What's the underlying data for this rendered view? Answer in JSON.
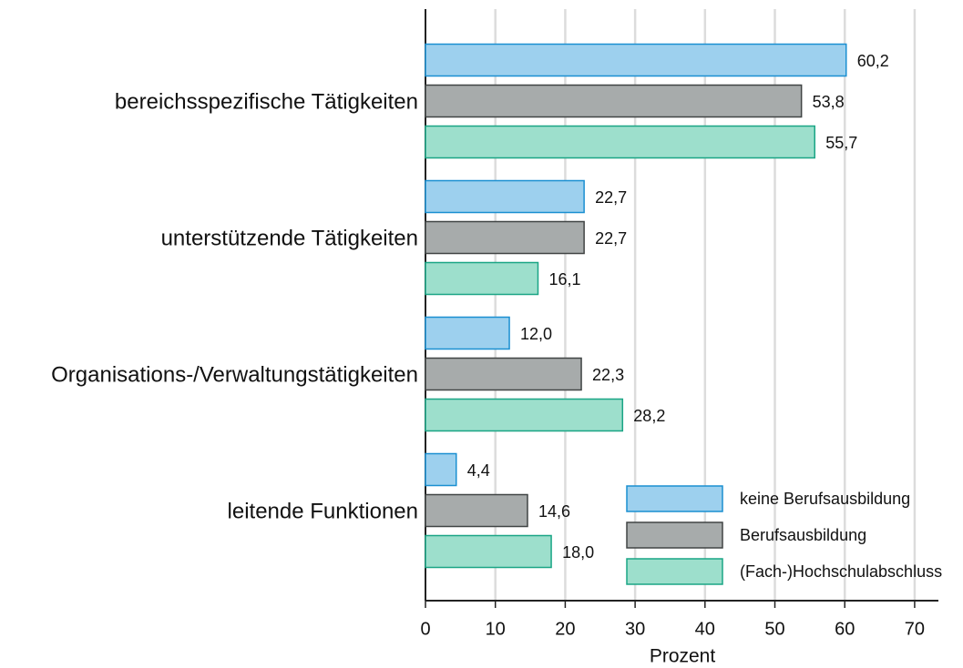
{
  "chart_data": {
    "type": "bar",
    "orientation": "horizontal",
    "categories": [
      "bereichsspezifische Tätigkeiten",
      "unterstützende Tätigkeiten",
      "Organisations-/Verwaltungstätigkeiten",
      "leitende Funktionen"
    ],
    "series": [
      {
        "name": "keine Berufsausbildung",
        "color": "#9dd0ee",
        "edge": "#1a8fd1",
        "values": [
          60.2,
          22.7,
          12.0,
          4.4
        ],
        "value_labels": [
          "60,2",
          "22,7",
          "12,0",
          "4,4"
        ]
      },
      {
        "name": "Berufsausbildung",
        "color": "#a7abab",
        "edge": "#404444",
        "values": [
          53.8,
          22.7,
          22.3,
          14.6
        ],
        "value_labels": [
          "53,8",
          "22,7",
          "22,3",
          "14,6"
        ]
      },
      {
        "name": "(Fach-)Hochschulabschluss",
        "color": "#9ddfcc",
        "edge": "#1aa585",
        "values": [
          55.7,
          16.1,
          28.2,
          18.0
        ],
        "value_labels": [
          "55,7",
          "16,1",
          "28,2",
          "18,0"
        ]
      }
    ],
    "xlabel": "Prozent",
    "xlim": [
      0,
      73.4
    ],
    "xticks": [
      0,
      10,
      20,
      30,
      40,
      50,
      60,
      70
    ],
    "grid": true,
    "legend": "lower right"
  }
}
